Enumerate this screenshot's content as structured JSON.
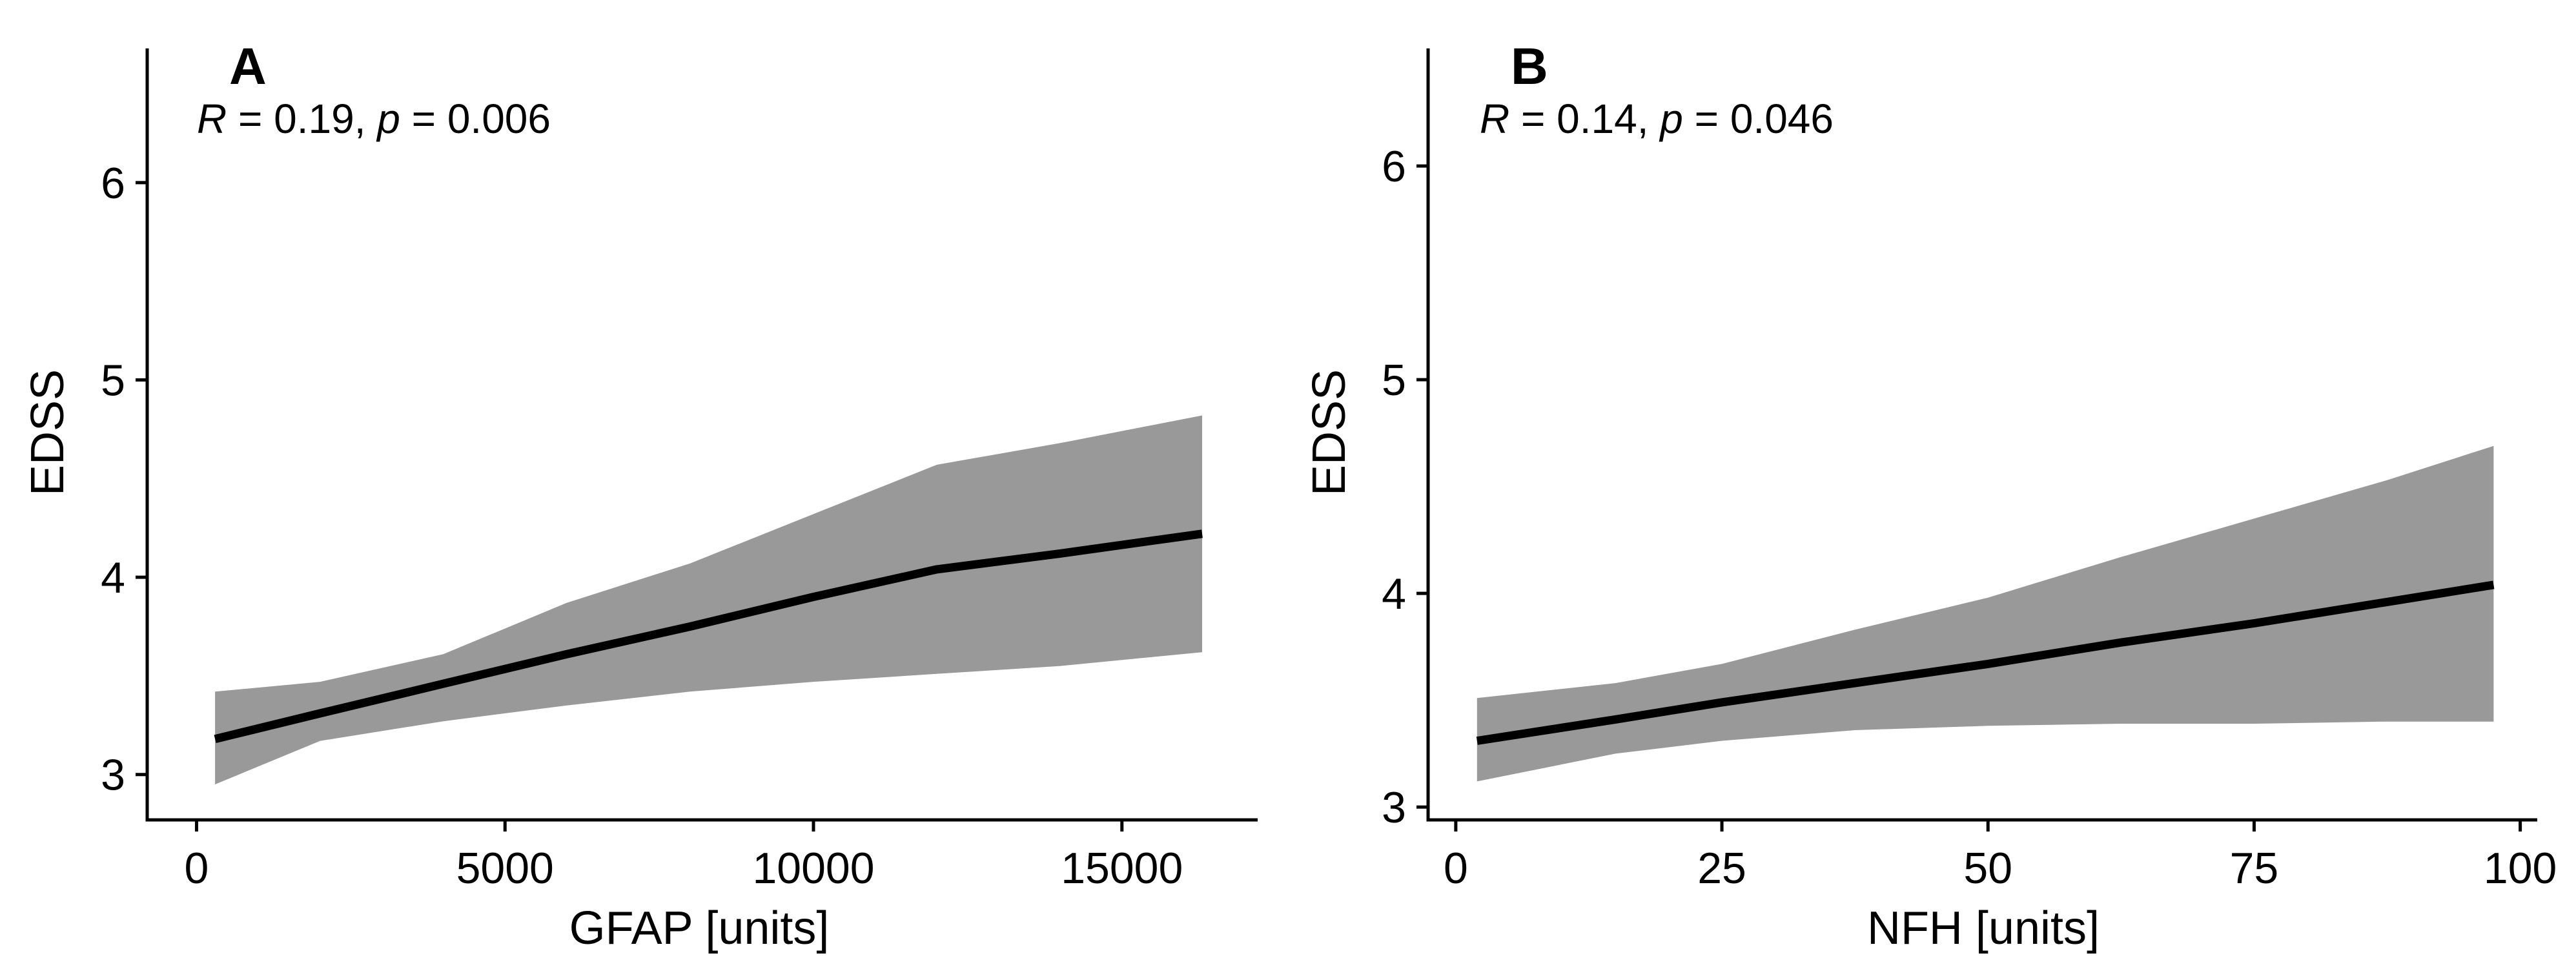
{
  "chart_data": [
    {
      "type": "line",
      "panel_label": "A",
      "annotation": {
        "r_symbol": "R",
        "r_value": "0.19",
        "p_symbol": "p",
        "p_value": "0.006"
      },
      "xlabel": "GFAP [units]",
      "ylabel": "EDSS",
      "xlim": [
        -800,
        17200
      ],
      "ylim": [
        2.77,
        6.68
      ],
      "xticks": [
        0,
        5000,
        10000,
        15000
      ],
      "yticks": [
        3,
        4,
        5,
        6
      ],
      "series": [
        {
          "x": [
            300,
            2000,
            4000,
            6000,
            8000,
            10000,
            12000,
            14000,
            16300
          ],
          "y": [
            3.18,
            3.31,
            3.46,
            3.61,
            3.75,
            3.9,
            4.04,
            4.12,
            4.22
          ],
          "ci_lower": [
            2.95,
            3.17,
            3.27,
            3.35,
            3.42,
            3.47,
            3.51,
            3.55,
            3.62
          ],
          "ci_upper": [
            3.42,
            3.47,
            3.61,
            3.87,
            4.07,
            4.32,
            4.57,
            4.68,
            4.82
          ]
        }
      ],
      "colors": {
        "line": "#000000",
        "band": "#999999"
      },
      "grid": false
    },
    {
      "type": "line",
      "panel_label": "B",
      "annotation": {
        "r_symbol": "R",
        "r_value": "0.14",
        "p_symbol": "p",
        "p_value": "0.046"
      },
      "xlabel": "NFH [units]",
      "ylabel": "EDSS",
      "xlim": [
        -2.6,
        101.6
      ],
      "ylim": [
        2.94,
        6.55
      ],
      "xticks": [
        0,
        25,
        50,
        75,
        100
      ],
      "yticks": [
        3,
        4,
        5,
        6
      ],
      "series": [
        {
          "x": [
            2,
            15,
            25,
            37.5,
            50,
            62.5,
            75,
            87.5,
            97.5
          ],
          "y": [
            3.31,
            3.41,
            3.49,
            3.58,
            3.67,
            3.77,
            3.86,
            3.96,
            4.04
          ],
          "ci_lower": [
            3.12,
            3.25,
            3.31,
            3.36,
            3.38,
            3.39,
            3.39,
            3.4,
            3.4
          ],
          "ci_upper": [
            3.51,
            3.58,
            3.67,
            3.83,
            3.98,
            4.17,
            4.35,
            4.53,
            4.69
          ]
        }
      ],
      "colors": {
        "line": "#000000",
        "band": "#999999"
      },
      "grid": false
    }
  ]
}
